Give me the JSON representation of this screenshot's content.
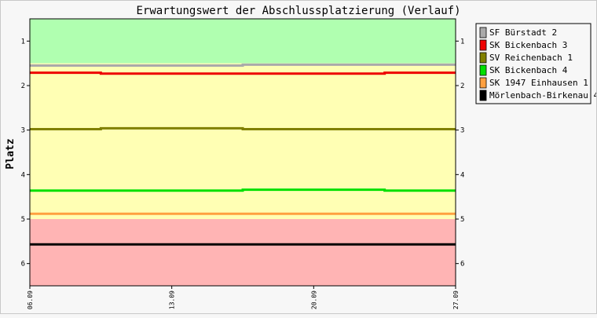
{
  "chart_data": {
    "type": "line",
    "title": "Erwartungswert der Abschlussplatzierung (Verlauf)",
    "ylabel": "Platz",
    "xlabel": "",
    "x": [
      "06.09",
      "13.09",
      "20.09",
      "27.09"
    ],
    "ylim": [
      6.5,
      0.5
    ],
    "y_reversed": true,
    "yticks": [
      1,
      2,
      3,
      4,
      5,
      6
    ],
    "bands": [
      {
        "from": 0.5,
        "to": 1.5,
        "color": "#b0ffb0"
      },
      {
        "from": 1.5,
        "to": 5.0,
        "color": "#ffffb4"
      },
      {
        "from": 5.0,
        "to": 6.5,
        "color": "#ffb4b4"
      }
    ],
    "series": [
      {
        "name": "SF Bürstadt 2",
        "color": "#aaaaaa",
        "values": [
          1.55,
          1.55,
          1.53,
          1.53
        ]
      },
      {
        "name": "SK Bickenbach 3",
        "color": "#ee0000",
        "values": [
          1.71,
          1.73,
          1.73,
          1.71
        ]
      },
      {
        "name": "SV Reichenbach 1",
        "color": "#808000",
        "values": [
          2.98,
          2.96,
          2.98,
          2.98
        ]
      },
      {
        "name": "SK Bickenbach 4",
        "color": "#00e000",
        "values": [
          4.36,
          4.36,
          4.34,
          4.36
        ]
      },
      {
        "name": "SK 1947 Einhausen 1",
        "color": "#ffa040",
        "values": [
          4.88,
          4.88,
          4.88,
          4.88
        ]
      },
      {
        "name": "Mörlenbach-Birkenau 4",
        "color": "#000000",
        "values": [
          5.57,
          5.57,
          5.57,
          5.57
        ]
      }
    ],
    "grid": false,
    "legend_position": "right"
  }
}
